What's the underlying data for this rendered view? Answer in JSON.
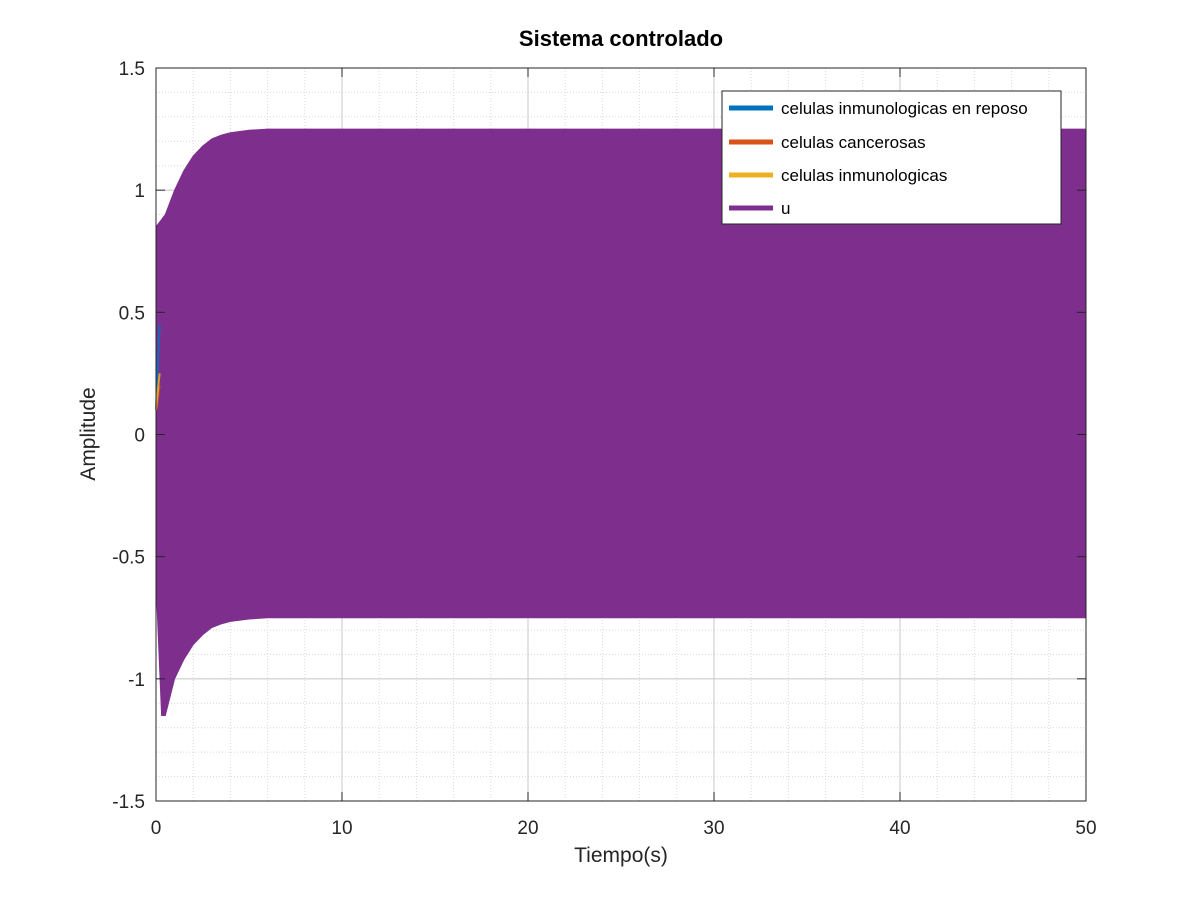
{
  "chart_data": {
    "type": "line",
    "title": "Sistema controlado",
    "xlabel": "Tiempo(s)",
    "ylabel": "Amplitude",
    "xlim": [
      0,
      50
    ],
    "ylim": [
      -1.5,
      1.5
    ],
    "xticks": [
      0,
      10,
      20,
      30,
      40,
      50
    ],
    "xtick_labels": [
      "0",
      "10",
      "20",
      "30",
      "40",
      "50"
    ],
    "yticks": [
      -1.5,
      -1,
      -0.5,
      0,
      0.5,
      1,
      1.5
    ],
    "ytick_labels": [
      "-1.5",
      "-1",
      "-0.5",
      "0",
      "0.5",
      "1",
      "1.5"
    ],
    "grid": true,
    "minor_grid": true,
    "legend_position": "top-right",
    "series": [
      {
        "name": "celulas inmunologicas en reposo",
        "color": "#0072BD",
        "x": [
          0,
          0.05,
          0.1,
          0.15,
          0.2
        ],
        "y": [
          0.1,
          0.2,
          0.3,
          0.38,
          0.45
        ]
      },
      {
        "name": "celulas cancerosas",
        "color": "#D95319",
        "x": [
          0,
          0.05,
          0.1,
          0.15,
          0.2
        ],
        "y": [
          0.1,
          0.12,
          0.15,
          0.18,
          0.2
        ]
      },
      {
        "name": "celulas inmunologicas",
        "color": "#EDB120",
        "x": [
          0,
          0.05,
          0.1,
          0.15,
          0.2
        ],
        "y": [
          0.1,
          0.14,
          0.18,
          0.22,
          0.25
        ]
      },
      {
        "name": "u",
        "color": "#7E2F8E",
        "style": "dense-oscillation-envelope",
        "x": [
          0,
          0.3,
          0.5,
          1,
          1.5,
          2,
          2.5,
          3,
          3.5,
          4,
          5,
          6,
          8,
          10,
          20,
          30,
          40,
          50
        ],
        "upper": [
          0.85,
          0.88,
          0.9,
          1.0,
          1.08,
          1.14,
          1.18,
          1.21,
          1.225,
          1.235,
          1.245,
          1.25,
          1.25,
          1.25,
          1.25,
          1.25,
          1.25,
          1.25
        ],
        "lower": [
          -0.6,
          -1.15,
          -1.15,
          -1.0,
          -0.92,
          -0.86,
          -0.82,
          -0.79,
          -0.775,
          -0.765,
          -0.755,
          -0.75,
          -0.75,
          -0.75,
          -0.75,
          -0.75,
          -0.75,
          -0.75
        ]
      }
    ]
  }
}
